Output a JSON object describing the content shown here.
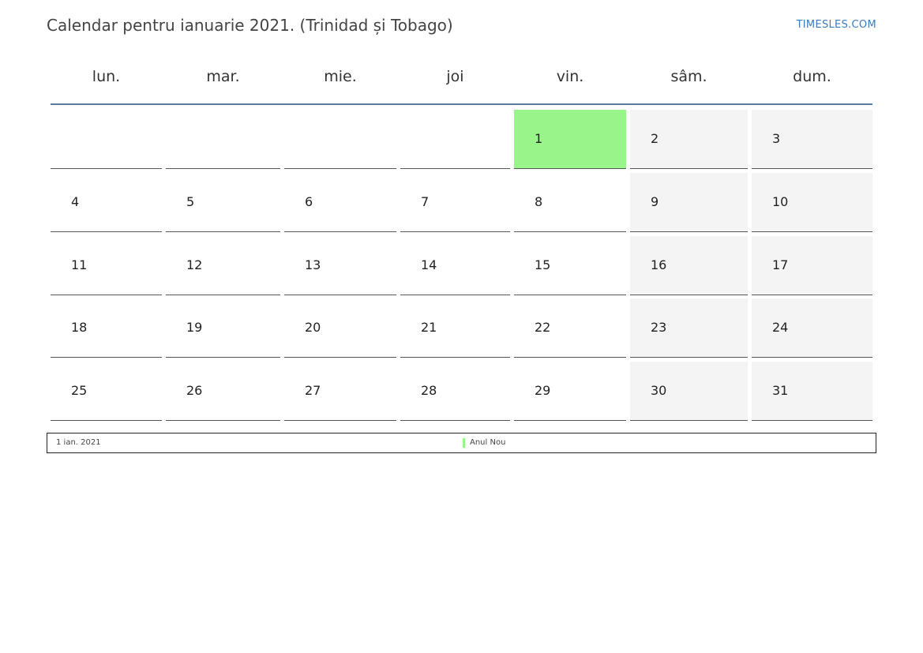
{
  "header": {
    "title": "Calendar pentru ianuarie 2021. (Trinidad și Tobago)",
    "site": "TIMESLES.COM"
  },
  "weekdays": [
    "lun.",
    "mar.",
    "mie.",
    "joi",
    "vin.",
    "sâm.",
    "dum."
  ],
  "weeks": [
    [
      "",
      "",
      "",
      "",
      "1",
      "2",
      "3"
    ],
    [
      "4",
      "5",
      "6",
      "7",
      "8",
      "9",
      "10"
    ],
    [
      "11",
      "12",
      "13",
      "14",
      "15",
      "16",
      "17"
    ],
    [
      "18",
      "19",
      "20",
      "21",
      "22",
      "23",
      "24"
    ],
    [
      "25",
      "26",
      "27",
      "28",
      "29",
      "30",
      "31"
    ]
  ],
  "holiday_days": [
    "1"
  ],
  "legend": {
    "date": "1 ian. 2021",
    "name": "Anul Nou",
    "color": "#99f58a"
  },
  "colors": {
    "weekend": "#f4f4f4",
    "holiday": "#99f58a",
    "header_rule": "#5a7aa0",
    "link": "#3a7bbf"
  }
}
